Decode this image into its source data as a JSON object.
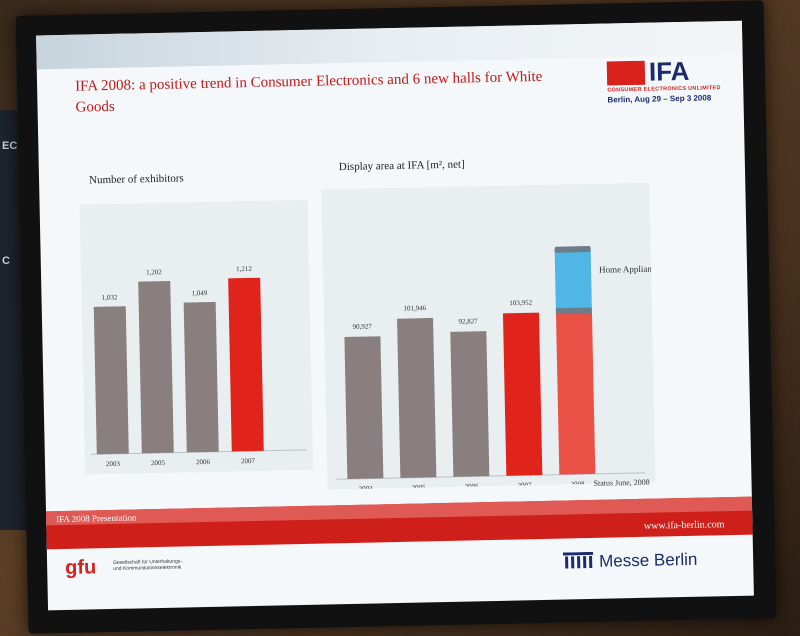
{
  "slide": {
    "title": "IFA 2008: a positive trend in Consumer Electronics and 6 new halls for White Goods",
    "status_note": "Status June, 2008",
    "footer_left": "IFA 2008 Presentation",
    "footer_url": "www.ifa-berlin.com"
  },
  "logos": {
    "ifa": "IFA",
    "ifa_sub": "CONSUMER ELECTRONICS UNLIMITED",
    "ifa_date": "Berlin, Aug 29 – Sep 3 2008",
    "gfu": "gfu",
    "gfu_text": "Gesellschaft für Unterhaltungs- und Kommunikationselektronik",
    "messe": "Messe Berlin"
  },
  "colors": {
    "gray_bar": "#8a7f7f",
    "red_bar": "#e0241c",
    "blue_bar": "#4fb6e6",
    "title_red": "#c01b1b"
  },
  "chart_data": [
    {
      "type": "bar",
      "title": "Number of exhibitors",
      "categories": [
        "2003",
        "2005",
        "2006",
        "2007"
      ],
      "values": [
        1032,
        1202,
        1049,
        1212
      ],
      "labels": [
        "1,032",
        "1,202",
        "1,049",
        "1,212"
      ],
      "highlight": [
        "gray",
        "gray",
        "gray",
        "red"
      ],
      "ylim": [
        0,
        1400
      ],
      "grid": false
    },
    {
      "type": "bar",
      "title": "Display area at IFA [m², net]",
      "categories": [
        "2003",
        "2005",
        "2006",
        "2007",
        "2008"
      ],
      "values": [
        90927,
        101946,
        92827,
        103952,
        null
      ],
      "labels": [
        "90,927",
        "101,946",
        "92,827",
        "103,952",
        ""
      ],
      "highlight": [
        "gray",
        "gray",
        "gray",
        "red",
        "red-light"
      ],
      "stacked_2008": {
        "consumer_electronics": 103952,
        "home_appliances_label": "Home Appliances",
        "home_appliances": 40000
      },
      "ylim": [
        0,
        160000
      ],
      "grid": false
    }
  ]
}
